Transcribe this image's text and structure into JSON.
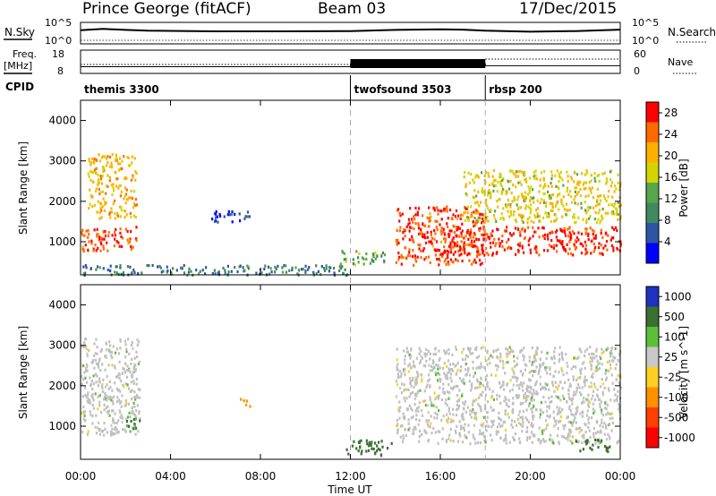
{
  "header": {
    "station": "Prince George (fitACF)",
    "beam": "Beam 03",
    "date": "17/Dec/2015"
  },
  "top_panels": {
    "nsky_label": "N.Sky",
    "nsearch_label": "N.Search",
    "noise_ticks": [
      "10^5",
      "10^0"
    ],
    "freq_label_1": "Freq.",
    "freq_label_2": "[MHz]",
    "freq_ticks": [
      "18",
      "8"
    ],
    "nave_label": "Nave",
    "nave_ticks": [
      "60",
      "0"
    ],
    "cpid_label": "CPID",
    "cpid_segments": [
      {
        "label": "themis 3300",
        "start_hour": 0
      },
      {
        "label": "twofsound 3503",
        "start_hour": 12
      },
      {
        "label": "rbsp 200",
        "start_hour": 18
      }
    ]
  },
  "time_axis": {
    "label": "Time UT",
    "ticks": [
      "00:00",
      "04:00",
      "08:00",
      "12:00",
      "16:00",
      "20:00",
      "00:00"
    ]
  },
  "colors": {
    "power_scale": [
      "#0000ff",
      "#2e55a5",
      "#3e8a5e",
      "#58a64a",
      "#d4d400",
      "#ffb000",
      "#ff6a00",
      "#ff0000"
    ],
    "velocity_scale": [
      "#2030c0",
      "#3a7030",
      "#5cbf3a",
      "#c8c8c8",
      "#ffd020",
      "#ff9000",
      "#ff4000",
      "#ff0000"
    ],
    "ground_scatter": "#c0c0c0"
  },
  "chart_data": [
    {
      "type": "line",
      "title": "Prince George (fitACF) Beam 03 17/Dec/2015",
      "xlabel": "Time UT",
      "ylabel": "N.Sky",
      "y_scale": "log",
      "ylim": [
        1,
        100000
      ],
      "series": [
        {
          "name": "N.Sky",
          "x_hours": [
            0,
            1,
            2,
            3,
            6,
            9,
            12,
            14,
            16,
            17,
            18,
            20,
            22,
            24
          ],
          "values": [
            2000,
            5000,
            2500,
            1500,
            1000,
            1000,
            1200,
            2500,
            3500,
            3000,
            1500,
            800,
            1200,
            3000
          ]
        }
      ]
    },
    {
      "type": "line",
      "xlabel": "Time UT",
      "ylabel": "Freq. [MHz]",
      "ylim": [
        8,
        18
      ],
      "series": [
        {
          "name": "Freq.",
          "x_hours": [
            0,
            12,
            12,
            18,
            18,
            24
          ],
          "values": [
            10.5,
            10.5,
            12,
            12,
            11,
            11
          ]
        }
      ]
    },
    {
      "type": "heatmap",
      "xlabel": "Time UT",
      "ylabel": "Slant Range [km]",
      "xlim": [
        0,
        24
      ],
      "ylim": [
        180,
        4500
      ],
      "yticks": [
        1000,
        2000,
        3000,
        4000
      ],
      "colorbar": {
        "label": "Power [dB]",
        "ticks": [
          4,
          8,
          12,
          16,
          20,
          24,
          28
        ],
        "range": [
          0,
          30
        ]
      },
      "echo_regions": [
        {
          "t0": 0.0,
          "t1": 2.5,
          "r0": 800,
          "r1": 1400,
          "value": 26
        },
        {
          "t0": 0.3,
          "t1": 2.5,
          "r0": 1600,
          "r1": 3200,
          "value": 20
        },
        {
          "t0": 0.0,
          "t1": 12.0,
          "r0": 200,
          "r1": 450,
          "value": 8
        },
        {
          "t0": 5.8,
          "t1": 7.5,
          "r0": 1500,
          "r1": 1800,
          "value": 4
        },
        {
          "t0": 11.5,
          "t1": 13.5,
          "r0": 450,
          "r1": 800,
          "value": 12
        },
        {
          "t0": 14.0,
          "t1": 18.0,
          "r0": 450,
          "r1": 1900,
          "value": 26
        },
        {
          "t0": 16.0,
          "t1": 24.0,
          "r0": 700,
          "r1": 1400,
          "value": 28
        },
        {
          "t0": 17.0,
          "t1": 24.0,
          "r0": 1500,
          "r1": 2800,
          "value": 18
        }
      ]
    },
    {
      "type": "heatmap",
      "xlabel": "Time UT",
      "ylabel": "Slant Range [km]",
      "xlim": [
        0,
        24
      ],
      "ylim": [
        180,
        4500
      ],
      "yticks": [
        1000,
        2000,
        3000,
        4000
      ],
      "colorbar": {
        "label": "Velocity [m s^-1]",
        "ticks": [
          1000,
          500,
          100,
          25,
          -25,
          -100,
          -500,
          -1000
        ]
      },
      "echo_regions": [
        {
          "t0": 0.0,
          "t1": 2.6,
          "r0": 800,
          "r1": 3200,
          "value": 0,
          "ground_scatter": true
        },
        {
          "t0": 2.0,
          "t1": 2.6,
          "r0": 900,
          "r1": 1400,
          "value": 100
        },
        {
          "t0": 7.0,
          "t1": 7.5,
          "r0": 1500,
          "r1": 1700,
          "value": -300
        },
        {
          "t0": 11.8,
          "t1": 13.8,
          "r0": 300,
          "r1": 700,
          "value": 300
        },
        {
          "t0": 14.0,
          "t1": 24.0,
          "r0": 600,
          "r1": 3000,
          "value": 0,
          "ground_scatter": true
        },
        {
          "t0": 22.0,
          "t1": 23.5,
          "r0": 400,
          "r1": 700,
          "value": 300
        }
      ]
    }
  ]
}
